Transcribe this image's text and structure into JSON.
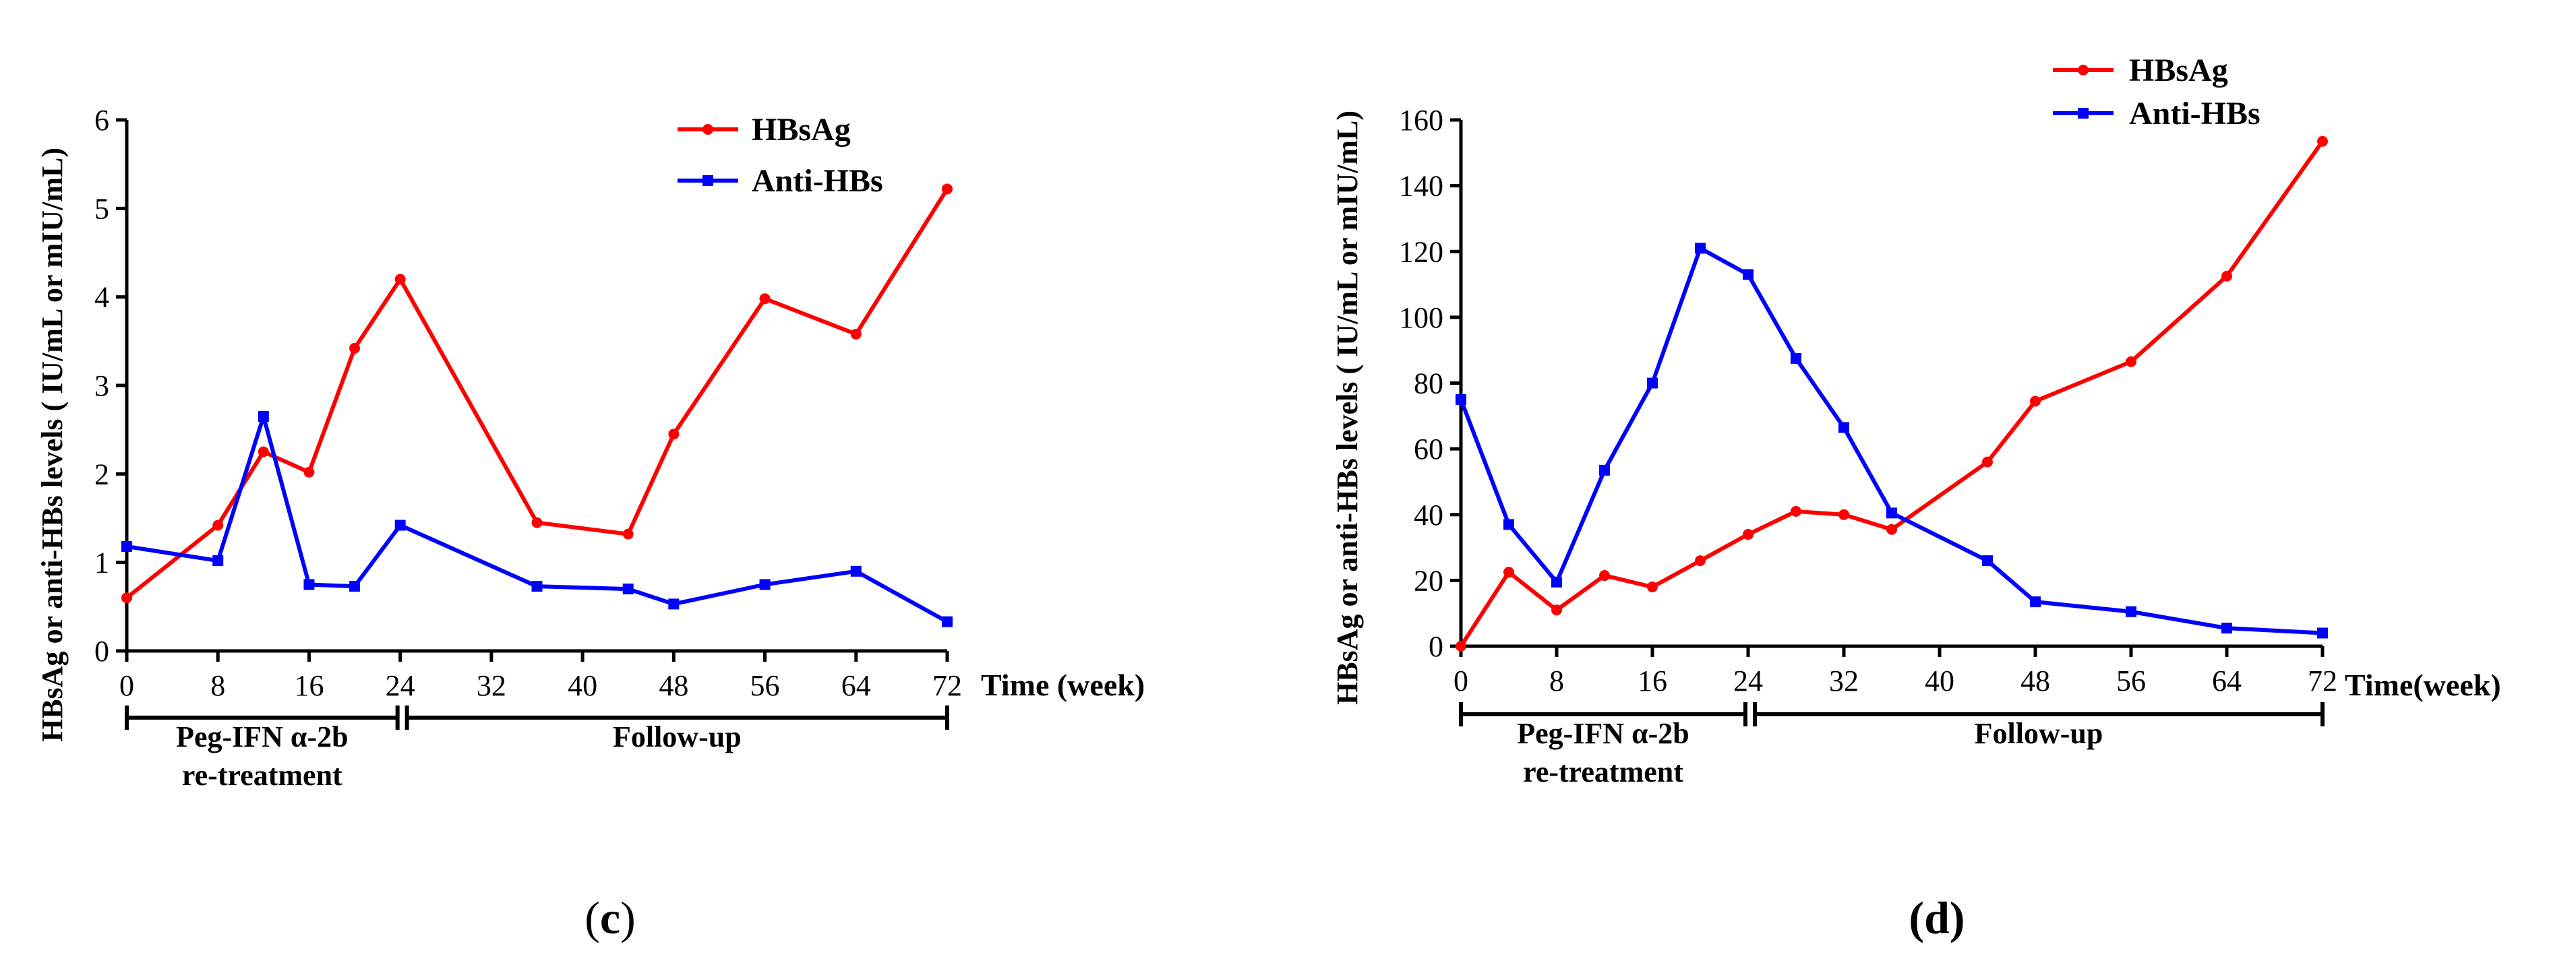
{
  "chart_data": [
    {
      "type": "line",
      "panel": "(c)",
      "panel_letter": "c",
      "ylabel": "HBsAg or anti-HBs levels ( IU/mL or mIU/mL)",
      "xlabel": "Time (week)",
      "ylim": [
        0,
        6
      ],
      "yticks": [
        0,
        1,
        2,
        3,
        4,
        5,
        6
      ],
      "xlim": [
        0,
        72
      ],
      "xticks": [
        0,
        8,
        16,
        24,
        32,
        40,
        48,
        56,
        64,
        72
      ],
      "series": [
        {
          "name": "HBsAg",
          "color": "#ff0000",
          "marker": "circle",
          "x": [
            0,
            8,
            12,
            16,
            20,
            24,
            36,
            44,
            48,
            56,
            64,
            72
          ],
          "y": [
            0.6,
            1.42,
            2.25,
            2.02,
            3.42,
            4.2,
            1.45,
            1.32,
            2.45,
            3.98,
            3.58,
            5.22
          ]
        },
        {
          "name": "Anti-HBs",
          "color": "#0000ff",
          "marker": "square",
          "x": [
            0,
            8,
            12,
            16,
            20,
            24,
            36,
            44,
            48,
            56,
            64,
            72
          ],
          "y": [
            1.18,
            1.02,
            2.65,
            0.75,
            0.73,
            1.42,
            0.73,
            0.7,
            0.53,
            0.75,
            0.9,
            0.33
          ]
        }
      ],
      "phases": [
        {
          "label_lines": [
            "Peg-IFN α-2b",
            "re-treatment"
          ],
          "start": 0,
          "end": 24
        },
        {
          "label_lines": [
            "Follow-up"
          ],
          "start": 24,
          "end": 72
        }
      ]
    },
    {
      "type": "line",
      "panel": "(d)",
      "panel_letter": "d",
      "ylabel": "HBsAg or anti-HBs levels ( IU/mL or mIU/mL)",
      "xlabel": "Time(week)",
      "ylim": [
        0,
        160
      ],
      "yticks": [
        0,
        20,
        40,
        60,
        80,
        100,
        120,
        140,
        160
      ],
      "xlim": [
        0,
        72
      ],
      "xticks": [
        0,
        8,
        16,
        24,
        32,
        40,
        48,
        56,
        64,
        72
      ],
      "series": [
        {
          "name": "HBsAg",
          "color": "#ff0000",
          "marker": "circle",
          "x": [
            0,
            4,
            8,
            12,
            16,
            20,
            24,
            28,
            32,
            36,
            44,
            48,
            56,
            64,
            72
          ],
          "y": [
            0,
            22.5,
            11,
            21.5,
            18,
            26,
            34,
            41,
            40,
            35.5,
            56,
            74.5,
            86.5,
            112.5,
            153.5
          ]
        },
        {
          "name": "Anti-HBs",
          "color": "#0000ff",
          "marker": "square",
          "x": [
            0,
            4,
            8,
            12,
            16,
            20,
            24,
            28,
            32,
            36,
            44,
            48,
            56,
            64,
            72
          ],
          "y": [
            75,
            37,
            19.5,
            53.5,
            80,
            121,
            113,
            87.5,
            66.5,
            40.5,
            26,
            13.5,
            10.5,
            5.5,
            4
          ]
        }
      ],
      "phases": [
        {
          "label_lines": [
            "Peg-IFN α-2b",
            "re-treatment"
          ],
          "start": 0,
          "end": 24
        },
        {
          "label_lines": [
            "Follow-up"
          ],
          "start": 24,
          "end": 72
        }
      ]
    }
  ]
}
